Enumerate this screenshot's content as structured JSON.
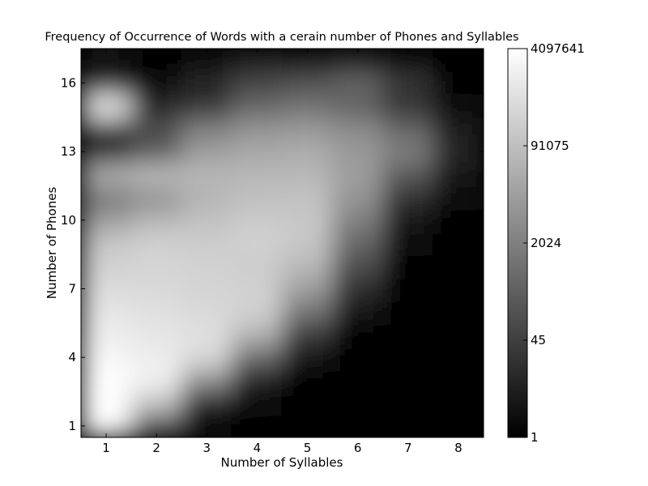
{
  "chart_data": {
    "type": "heatmap",
    "title": "Frequency of Occurrence of Words with a cerain number of Phones and Syllables",
    "xlabel": "Number of Syllables",
    "ylabel": "Number of Phones",
    "x_ticks": [
      1,
      2,
      3,
      4,
      5,
      6,
      7,
      8
    ],
    "y_ticks": [
      1,
      4,
      7,
      10,
      13,
      16
    ],
    "xlim": [
      0.5,
      8.5
    ],
    "ylim": [
      0.5,
      17.5
    ],
    "color_scale": "log",
    "colormap": "gray",
    "colorbar_ticks": [
      "1",
      "45",
      "2024",
      "91075",
      "4097641"
    ],
    "colorbar_range": [
      1,
      4097641
    ],
    "rows_phones": [
      1,
      2,
      3,
      4,
      5,
      6,
      7,
      8,
      9,
      10,
      11,
      12,
      13,
      14,
      15,
      16,
      17
    ],
    "cols_syllables": [
      1,
      2,
      3,
      4,
      5,
      6,
      7,
      8
    ],
    "intensity": [
      [
        1.0,
        0.35,
        0.05,
        0.0,
        0.0,
        0.0,
        0.0,
        0.0
      ],
      [
        1.0,
        0.75,
        0.1,
        0.03,
        0.0,
        0.0,
        0.0,
        0.0
      ],
      [
        1.0,
        0.95,
        0.55,
        0.1,
        0.02,
        0.0,
        0.0,
        0.0
      ],
      [
        0.97,
        0.93,
        0.85,
        0.4,
        0.08,
        0.0,
        0.0,
        0.0
      ],
      [
        0.93,
        0.9,
        0.88,
        0.7,
        0.22,
        0.02,
        0.0,
        0.0
      ],
      [
        0.9,
        0.88,
        0.85,
        0.82,
        0.45,
        0.08,
        0.0,
        0.0
      ],
      [
        0.86,
        0.85,
        0.83,
        0.82,
        0.62,
        0.18,
        0.0,
        0.0
      ],
      [
        0.82,
        0.83,
        0.82,
        0.8,
        0.72,
        0.3,
        0.02,
        0.0
      ],
      [
        0.78,
        0.82,
        0.8,
        0.82,
        0.78,
        0.4,
        0.05,
        0.02
      ],
      [
        0.62,
        0.72,
        0.76,
        0.8,
        0.78,
        0.5,
        0.08,
        0.02
      ],
      [
        0.45,
        0.55,
        0.7,
        0.75,
        0.76,
        0.58,
        0.2,
        0.05
      ],
      [
        0.7,
        0.75,
        0.72,
        0.72,
        0.72,
        0.62,
        0.35,
        0.08
      ],
      [
        0.1,
        0.35,
        0.62,
        0.66,
        0.68,
        0.6,
        0.5,
        0.15
      ],
      [
        0.2,
        0.3,
        0.5,
        0.58,
        0.6,
        0.55,
        0.4,
        0.1
      ],
      [
        0.95,
        0.15,
        0.2,
        0.4,
        0.45,
        0.38,
        0.2,
        0.05
      ],
      [
        0.05,
        0.05,
        0.15,
        0.28,
        0.32,
        0.4,
        0.22,
        0.02
      ],
      [
        0.1,
        0.0,
        0.05,
        0.12,
        0.08,
        0.1,
        0.05,
        0.0
      ]
    ]
  }
}
